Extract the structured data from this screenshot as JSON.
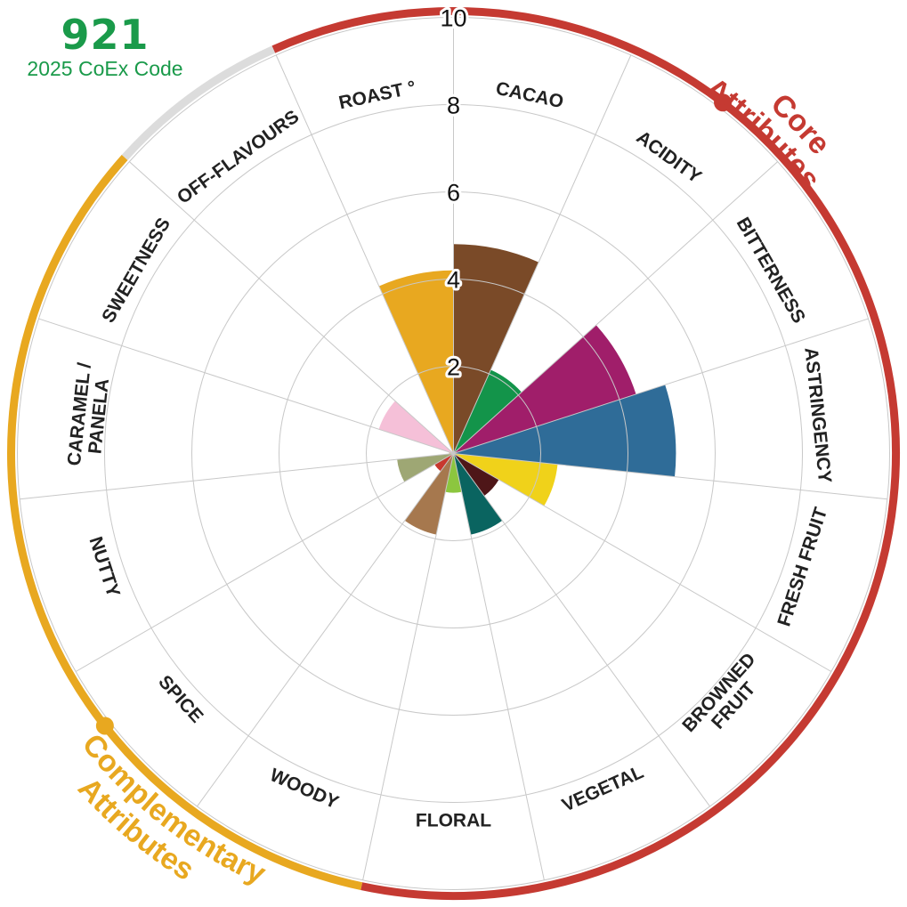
{
  "header": {
    "code_number": "921",
    "code_label": "2025 CoEx Code"
  },
  "groups": {
    "core": {
      "label": "Core Attributes",
      "color": "#c53a32"
    },
    "complementary": {
      "label": "Complementary Attributes",
      "color": "#e8a820"
    },
    "off_flavours_arc_color": "#dcdcdc"
  },
  "chart_data": {
    "type": "polar-area",
    "rlim": [
      0,
      10
    ],
    "ticks": [
      2,
      4,
      6,
      8,
      10
    ],
    "grid": true,
    "attributes": [
      {
        "name": "CACAO",
        "value": 4.8,
        "color": "#7a4a28",
        "group": "core"
      },
      {
        "name": "ACIDITY",
        "value": 2.1,
        "color": "#13944a",
        "group": "core"
      },
      {
        "name": "BITTERNESS",
        "value": 4.4,
        "color": "#a01e6a",
        "group": "core"
      },
      {
        "name": "ASTRINGENCY",
        "value": 5.1,
        "color": "#2f6c98",
        "group": "core"
      },
      {
        "name": "FRESH FRUIT",
        "value": 2.4,
        "color": "#f0d21a",
        "group": "complementary"
      },
      {
        "name": "BROWNED FRUIT",
        "value": 1.2,
        "color": "#4e1618",
        "group": "complementary"
      },
      {
        "name": "VEGETAL",
        "value": 1.9,
        "color": "#0a6460",
        "group": "complementary"
      },
      {
        "name": "FLORAL",
        "value": 0.9,
        "color": "#8cc63f",
        "group": "complementary"
      },
      {
        "name": "WOODY",
        "value": 1.9,
        "color": "#a6784e",
        "group": "complementary"
      },
      {
        "name": "SPICE",
        "value": 0.5,
        "color": "#c8382e",
        "group": "complementary"
      },
      {
        "name": "NUTTY",
        "value": 1.3,
        "color": "#9ea774",
        "group": "complementary"
      },
      {
        "name": "CARAMEL / PANELA",
        "value": 0.1,
        "color": "#dcb070",
        "group": "complementary"
      },
      {
        "name": "SWEETNESS",
        "value": 1.8,
        "color": "#f5c0d8",
        "group": "complementary"
      },
      {
        "name": "OFF-FLAVOURS",
        "value": 0.0,
        "color": "#a7a7a7",
        "group": "off"
      },
      {
        "name": "ROAST °",
        "value": 4.2,
        "color": "#e8a820",
        "group": "core"
      }
    ]
  }
}
